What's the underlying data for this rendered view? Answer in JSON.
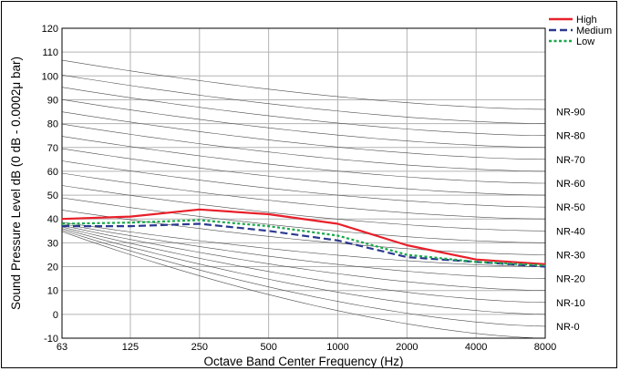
{
  "chart_data": {
    "type": "line",
    "title": "",
    "xlabel": "Octave Band Center Frequency (Hz)",
    "ylabel": "Sound Pressure Level dB (0 dB - 0.0002μ bar)",
    "x_scale": "log2",
    "xlim": [
      63,
      8000
    ],
    "ylim": [
      -10,
      120
    ],
    "x_ticks": [
      63,
      125,
      250,
      500,
      1000,
      2000,
      4000,
      8000
    ],
    "x_tick_labels": [
      "63",
      "125",
      "250",
      "500",
      "1000",
      "2000",
      "4000",
      "8000"
    ],
    "y_ticks": [
      -10,
      0,
      10,
      20,
      30,
      40,
      50,
      60,
      70,
      80,
      90,
      100,
      110,
      120
    ],
    "y_tick_labels": [
      "-10",
      "0",
      "10",
      "20",
      "30",
      "40",
      "50",
      "60",
      "70",
      "80",
      "90",
      "100",
      "110",
      "120"
    ],
    "grid": true,
    "legend_position": "top-right",
    "series": [
      {
        "name": "High",
        "color": "#e8202a",
        "dash": "solid",
        "x": [
          63,
          125,
          250,
          500,
          1000,
          2000,
          4000,
          8000
        ],
        "y": [
          40,
          41,
          44,
          42,
          38,
          29,
          23,
          21
        ]
      },
      {
        "name": "Medium",
        "color": "#2b3990",
        "dash": "dashed",
        "x": [
          63,
          125,
          250,
          500,
          1000,
          2000,
          4000,
          8000
        ],
        "y": [
          37,
          37,
          38,
          35,
          31,
          24,
          22,
          20
        ]
      },
      {
        "name": "Low",
        "color": "#18a84a",
        "dash": "dotted",
        "x": [
          63,
          125,
          250,
          500,
          1000,
          2000,
          4000,
          8000
        ],
        "y": [
          38,
          38.5,
          39.5,
          37,
          33,
          25,
          22,
          20.5
        ]
      }
    ],
    "nr_curves": {
      "labels": [
        "NR-90",
        "NR-80",
        "NR-70",
        "NR-60",
        "NR-50",
        "NR-40",
        "NR-30",
        "NR-20",
        "NR-10",
        "NR-0"
      ],
      "levels_at_8000": [
        85,
        75,
        65,
        55,
        45,
        35,
        25,
        15,
        5,
        -5
      ],
      "levels_at_63": [
        [
          105.5,
          100.5,
          95.5,
          90.5,
          85.5,
          80.5,
          75.5,
          70.5,
          65.5,
          60.5,
          55.5,
          50.5,
          45.5,
          40.5,
          35.5
        ],
        [
          31.5,
          27.5,
          23.5,
          19.5,
          15.5
        ]
      ],
      "levels_at_8000_minor": [
        86,
        80,
        75,
        70,
        65,
        60,
        55,
        50,
        45,
        40,
        35,
        30,
        25,
        20,
        15,
        10,
        5,
        0,
        -5,
        -10
      ]
    }
  }
}
